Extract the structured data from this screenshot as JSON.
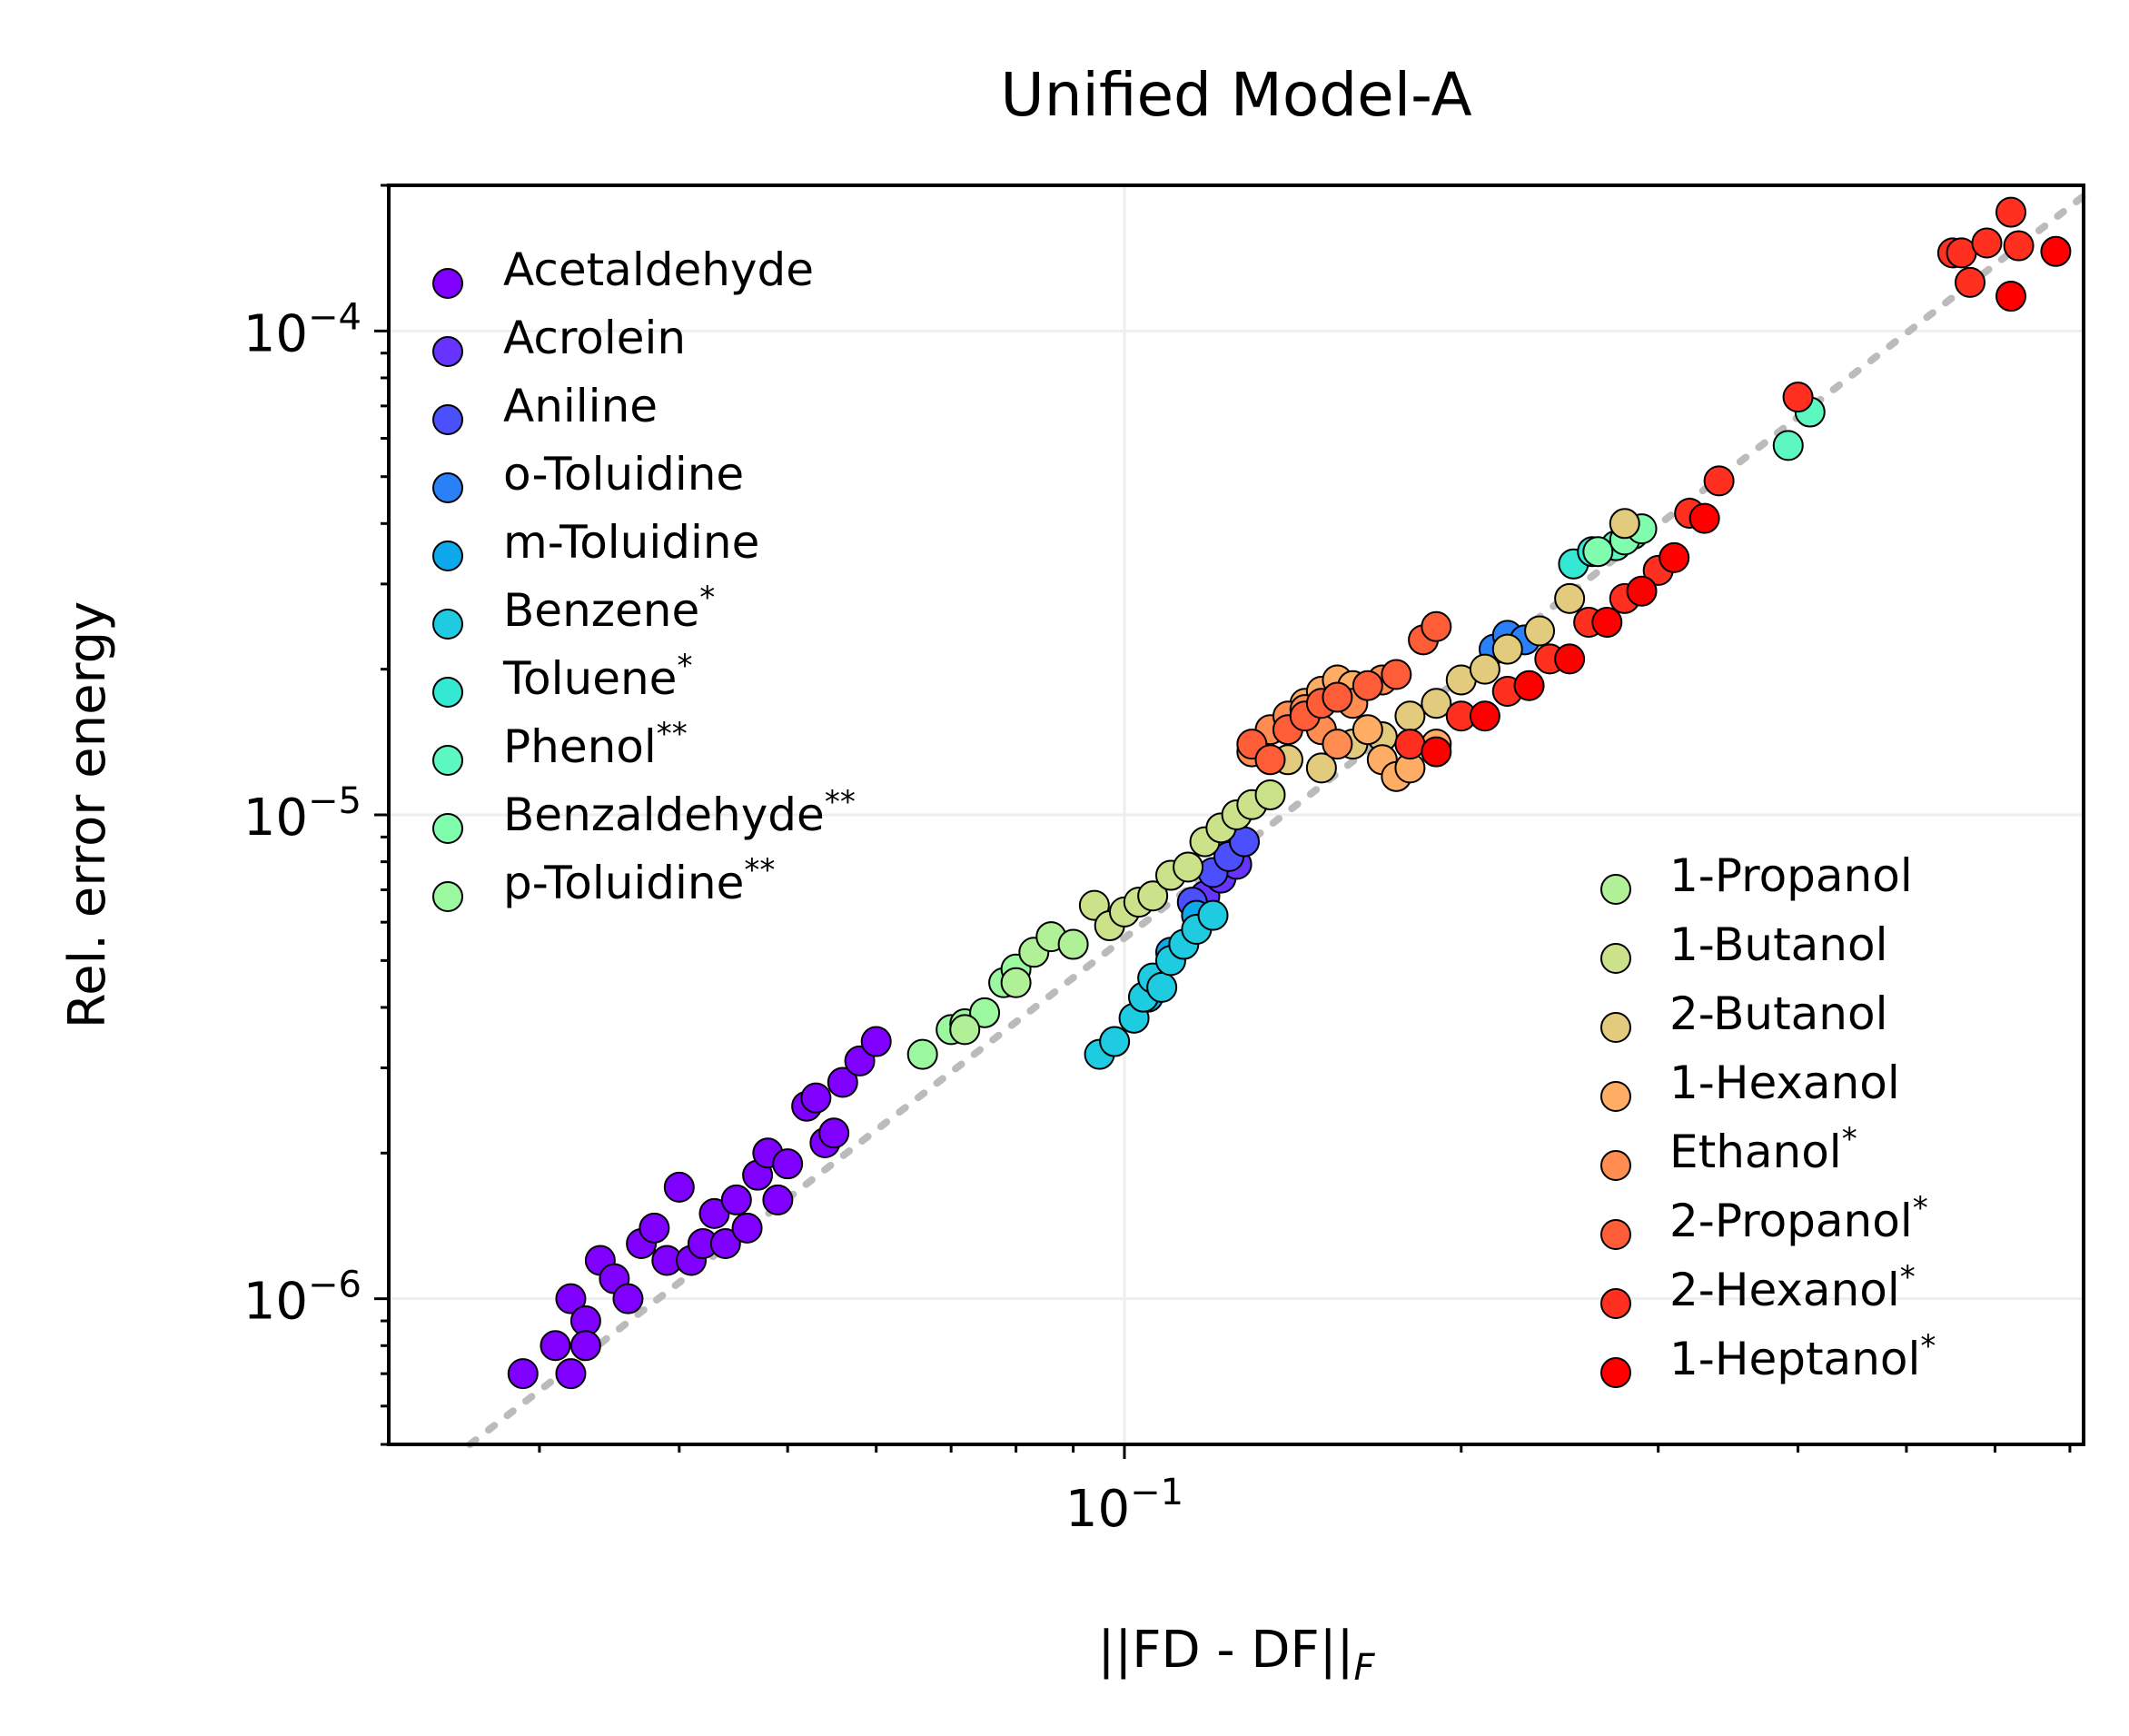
{
  "chart_data": {
    "type": "scatter",
    "title": "Unified Model-A",
    "xlabel": "||FD - DF||",
    "xlabel_sub": "F",
    "ylabel": "Rel. error energy",
    "xscale": "log",
    "yscale": "log",
    "xlim": [
      0.022,
      0.72
    ],
    "ylim": [
      5e-07,
      0.0002
    ],
    "grid": true,
    "reference_line": {
      "style": "dotted",
      "color": "#bbbbbb",
      "from": [
        0.026,
        5e-07
      ],
      "to": [
        0.72,
        0.00019
      ]
    },
    "x_tick_labels": [
      {
        "value": 0.1,
        "base": "10",
        "exp": "−1"
      }
    ],
    "y_tick_labels": [
      {
        "value": 1e-06,
        "base": "10",
        "exp": "−6"
      },
      {
        "value": 1e-05,
        "base": "10",
        "exp": "−5"
      },
      {
        "value": 0.0001,
        "base": "10",
        "exp": "−4"
      }
    ],
    "legends": [
      {
        "placement": "upper-left",
        "entries": [
          {
            "label": "Acetaldehyde",
            "sup": ""
          },
          {
            "label": "Acrolein",
            "sup": ""
          },
          {
            "label": "Aniline",
            "sup": ""
          },
          {
            "label": "o-Toluidine",
            "sup": ""
          },
          {
            "label": "m-Toluidine",
            "sup": ""
          },
          {
            "label": "Benzene",
            "sup": "*"
          },
          {
            "label": "Toluene",
            "sup": "*"
          },
          {
            "label": "Phenol",
            "sup": "**"
          },
          {
            "label": "Benzaldehyde",
            "sup": "**"
          },
          {
            "label": "p-Toluidine",
            "sup": "**"
          }
        ]
      },
      {
        "placement": "lower-right",
        "entries": [
          {
            "label": "1-Propanol",
            "sup": ""
          },
          {
            "label": "1-Butanol",
            "sup": ""
          },
          {
            "label": "2-Butanol",
            "sup": ""
          },
          {
            "label": "1-Hexanol",
            "sup": ""
          },
          {
            "label": "Ethanol",
            "sup": "*"
          },
          {
            "label": "2-Propanol",
            "sup": "*"
          },
          {
            "label": "2-Hexanol",
            "sup": "*"
          },
          {
            "label": "1-Heptanol",
            "sup": "*"
          }
        ]
      }
    ],
    "series": [
      {
        "name": "Acetaldehyde",
        "color": "#8000ff",
        "x": [
          0.029,
          0.031,
          0.032,
          0.032,
          0.033,
          0.033,
          0.034,
          0.035,
          0.036,
          0.037,
          0.038,
          0.039,
          0.04,
          0.041,
          0.042,
          0.043,
          0.044,
          0.045,
          0.046,
          0.047,
          0.048,
          0.049,
          0.05,
          0.052,
          0.053,
          0.054,
          0.055,
          0.056,
          0.058,
          0.06
        ],
        "y": [
          7e-07,
          8e-07,
          7e-07,
          1e-06,
          9e-07,
          8e-07,
          1.2e-06,
          1.1e-06,
          1e-06,
          1.3e-06,
          1.4e-06,
          1.2e-06,
          1.7e-06,
          1.2e-06,
          1.3e-06,
          1.5e-06,
          1.3e-06,
          1.6e-06,
          1.4e-06,
          1.8e-06,
          2e-06,
          1.6e-06,
          1.9e-06,
          2.5e-06,
          2.6e-06,
          2.1e-06,
          2.2e-06,
          2.8e-06,
          3.1e-06,
          3.4e-06
        ]
      },
      {
        "name": "Acrolein",
        "color": "#6634fe",
        "x": [
          0.118,
          0.122,
          0.126
        ],
        "y": [
          6.8e-06,
          7.4e-06,
          7.9e-06
        ]
      },
      {
        "name": "Aniline",
        "color": "#4c50fc",
        "x": [
          0.115,
          0.12,
          0.124,
          0.128
        ],
        "y": [
          6.6e-06,
          7.6e-06,
          8.2e-06,
          8.8e-06
        ]
      },
      {
        "name": "o-Toluidine",
        "color": "#2a80f6",
        "x": [
          0.214,
          0.22,
          0.228
        ],
        "y": [
          2.2e-05,
          2.35e-05,
          2.3e-05
        ]
      },
      {
        "name": "m-Toluidine",
        "color": "#0ca9ec",
        "x": [
          0.105,
          0.11,
          0.116
        ],
        "y": [
          4.2e-06,
          5.2e-06,
          6.2e-06
        ]
      },
      {
        "name": "Benzene",
        "color": "#1fcbe0",
        "x": [
          0.095,
          0.098,
          0.102,
          0.104,
          0.106,
          0.108,
          0.11,
          0.113,
          0.116,
          0.12
        ],
        "y": [
          3.2e-06,
          3.4e-06,
          3.8e-06,
          4.2e-06,
          4.6e-06,
          4.4e-06,
          5e-06,
          5.4e-06,
          5.8e-06,
          6.2e-06
        ]
      },
      {
        "name": "Toluene",
        "color": "#34e8d3",
        "x": [
          0.252,
          0.262
        ],
        "y": [
          3.3e-05,
          3.5e-05
        ]
      },
      {
        "name": "Phenol",
        "color": "#5cf8c0",
        "x": [
          0.392,
          0.41,
          0.275,
          0.285
        ],
        "y": [
          5.8e-05,
          6.8e-05,
          3.6e-05,
          3.8e-05
        ]
      },
      {
        "name": "Benzaldehyde",
        "color": "#7ffeae",
        "x": [
          0.265,
          0.28,
          0.29
        ],
        "y": [
          3.5e-05,
          3.7e-05,
          3.9e-05
        ]
      },
      {
        "name": "p-Toluidine",
        "color": "#9bf89f",
        "x": [
          0.066,
          0.07,
          0.072,
          0.075,
          0.078,
          0.08
        ],
        "y": [
          3.2e-06,
          3.6e-06,
          3.7e-06,
          3.9e-06,
          4.5e-06,
          4.8e-06
        ]
      },
      {
        "name": "1-Propanol",
        "color": "#b0f097",
        "x": [
          0.072,
          0.08,
          0.083,
          0.086,
          0.09
        ],
        "y": [
          3.6e-06,
          4.5e-06,
          5.2e-06,
          5.6e-06,
          5.4e-06
        ]
      },
      {
        "name": "1-Butanol",
        "color": "#cce28a",
        "x": [
          0.094,
          0.097,
          0.1,
          0.103,
          0.106,
          0.11,
          0.114,
          0.118,
          0.122,
          0.126,
          0.13,
          0.135
        ],
        "y": [
          6.5e-06,
          5.9e-06,
          6.3e-06,
          6.6e-06,
          6.8e-06,
          7.5e-06,
          7.8e-06,
          8.8e-06,
          9.4e-06,
          1e-05,
          1.05e-05,
          1.1e-05
        ]
      },
      {
        "name": "2-Butanol",
        "color": "#e2cb7c",
        "x": [
          0.14,
          0.15,
          0.16,
          0.17,
          0.18,
          0.19,
          0.2,
          0.21,
          0.22,
          0.235,
          0.25,
          0.28
        ],
        "y": [
          1.3e-05,
          1.25e-05,
          1.4e-05,
          1.45e-05,
          1.6e-05,
          1.7e-05,
          1.9e-05,
          2e-05,
          2.2e-05,
          2.4e-05,
          2.8e-05,
          4e-05
        ]
      },
      {
        "name": "1-Hexanol",
        "color": "#ffac65",
        "x": [
          0.14,
          0.145,
          0.15,
          0.155,
          0.16,
          0.165,
          0.17,
          0.175,
          0.18,
          0.19
        ],
        "y": [
          1.55e-05,
          1.7e-05,
          1.8e-05,
          1.9e-05,
          1.85e-05,
          1.5e-05,
          1.3e-05,
          1.2e-05,
          1.25e-05,
          1.4e-05
        ]
      },
      {
        "name": "Ethanol",
        "color": "#ff8c50",
        "x": [
          0.13,
          0.135,
          0.14,
          0.145,
          0.15,
          0.155,
          0.16,
          0.17
        ],
        "y": [
          1.35e-05,
          1.5e-05,
          1.6e-05,
          1.65e-05,
          1.5e-05,
          1.4e-05,
          1.7e-05,
          1.9e-05
        ]
      },
      {
        "name": "2-Propanol",
        "color": "#ff5c38",
        "x": [
          0.13,
          0.135,
          0.14,
          0.145,
          0.15,
          0.155,
          0.165,
          0.175,
          0.185,
          0.19
        ],
        "y": [
          1.4e-05,
          1.3e-05,
          1.5e-05,
          1.6e-05,
          1.7e-05,
          1.75e-05,
          1.85e-05,
          1.95e-05,
          2.3e-05,
          2.45e-05
        ]
      },
      {
        "name": "2-Hexanol",
        "color": "#ff3020",
        "x": [
          0.18,
          0.2,
          0.22,
          0.24,
          0.26,
          0.28,
          0.3,
          0.32,
          0.34,
          0.4,
          0.55,
          0.57,
          0.56,
          0.59,
          0.62,
          0.63
        ],
        "y": [
          1.4e-05,
          1.6e-05,
          1.8e-05,
          2.1e-05,
          2.5e-05,
          2.8e-05,
          3.2e-05,
          4.2e-05,
          4.9e-05,
          7.3e-05,
          0.000145,
          0.000126,
          0.000145,
          0.000152,
          0.000176,
          0.00015
        ]
      },
      {
        "name": "1-Heptanol",
        "color": "#ff0000",
        "x": [
          0.19,
          0.21,
          0.23,
          0.25,
          0.27,
          0.29,
          0.31,
          0.33,
          0.62,
          0.68
        ],
        "y": [
          1.35e-05,
          1.6e-05,
          1.85e-05,
          2.1e-05,
          2.5e-05,
          2.9e-05,
          3.4e-05,
          4.1e-05,
          0.000118,
          0.000146
        ]
      }
    ]
  }
}
